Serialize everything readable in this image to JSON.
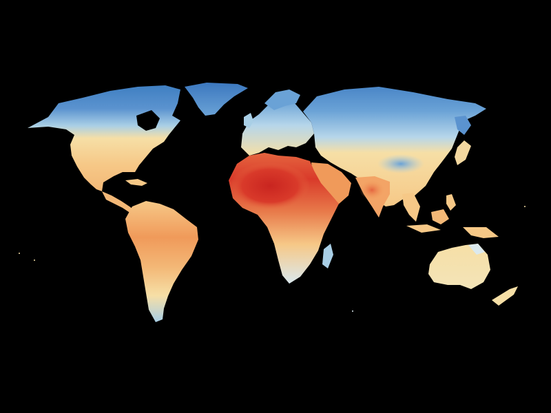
{
  "map": {
    "type": "choropleth",
    "subject": "world",
    "projection": "robinson-like",
    "title": "",
    "legend": "",
    "background_color": "#000000",
    "palette": {
      "coldest": "#2f6db3",
      "cold": "#5b93cf",
      "cool": "#a9cfe6",
      "mild": "#dbe9ee",
      "warm": "#f6dfa6",
      "warmer": "#f6c887",
      "hot": "#f09a5a",
      "hotter": "#e5653f",
      "hottest": "#cf2b22"
    },
    "regions": [
      {
        "name": "north-america",
        "dominant_class": "cold-to-warm"
      },
      {
        "name": "greenland",
        "dominant_class": "coldest"
      },
      {
        "name": "central-america",
        "dominant_class": "warmer"
      },
      {
        "name": "south-america",
        "dominant_class": "warm-to-hot"
      },
      {
        "name": "europe",
        "dominant_class": "cool-to-warm"
      },
      {
        "name": "africa",
        "dominant_class": "hottest"
      },
      {
        "name": "middle-east",
        "dominant_class": "hot"
      },
      {
        "name": "russia-siberia",
        "dominant_class": "cold"
      },
      {
        "name": "south-asia",
        "dominant_class": "hot"
      },
      {
        "name": "east-asia",
        "dominant_class": "warm"
      },
      {
        "name": "southeast-asia",
        "dominant_class": "warmer"
      },
      {
        "name": "australia",
        "dominant_class": "warm"
      },
      {
        "name": "new-zealand",
        "dominant_class": "warm"
      },
      {
        "name": "madagascar",
        "dominant_class": "cool"
      }
    ]
  }
}
